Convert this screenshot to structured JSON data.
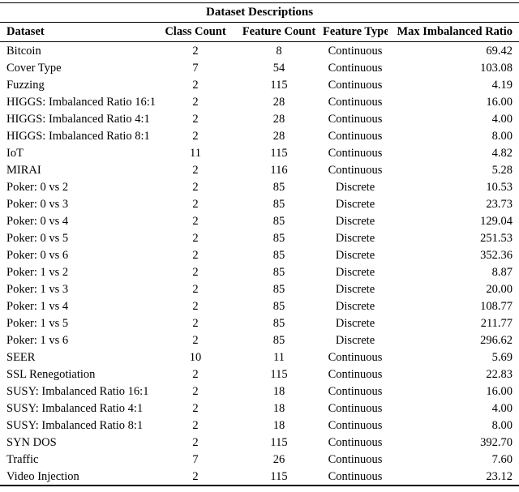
{
  "title": "Dataset Descriptions",
  "colors": {
    "text": "#000000",
    "background": "#ffffff",
    "rule": "#000000"
  },
  "table": {
    "columns": [
      {
        "label": "Dataset",
        "align": "left"
      },
      {
        "label": "Class Count",
        "align": "center"
      },
      {
        "label": "Feature Count",
        "align": "center"
      },
      {
        "label": "Feature Type",
        "align": "center"
      },
      {
        "label": "Max Imbalanced Ratio",
        "align": "right"
      }
    ],
    "rows": [
      [
        "Bitcoin",
        "2",
        "8",
        "Continuous",
        "69.42"
      ],
      [
        "Cover Type",
        "7",
        "54",
        "Continuous",
        "103.08"
      ],
      [
        "Fuzzing",
        "2",
        "115",
        "Continuous",
        "4.19"
      ],
      [
        "HIGGS: Imbalanced Ratio 16:1",
        "2",
        "28",
        "Continuous",
        "16.00"
      ],
      [
        "HIGGS: Imbalanced Ratio 4:1",
        "2",
        "28",
        "Continuous",
        "4.00"
      ],
      [
        "HIGGS: Imbalanced Ratio 8:1",
        "2",
        "28",
        "Continuous",
        "8.00"
      ],
      [
        "IoT",
        "11",
        "115",
        "Continuous",
        "4.82"
      ],
      [
        "MIRAI",
        "2",
        "116",
        "Continuous",
        "5.28"
      ],
      [
        "Poker: 0 vs 2",
        "2",
        "85",
        "Discrete",
        "10.53"
      ],
      [
        "Poker: 0 vs 3",
        "2",
        "85",
        "Discrete",
        "23.73"
      ],
      [
        "Poker: 0 vs 4",
        "2",
        "85",
        "Discrete",
        "129.04"
      ],
      [
        "Poker: 0 vs 5",
        "2",
        "85",
        "Discrete",
        "251.53"
      ],
      [
        "Poker: 0 vs 6",
        "2",
        "85",
        "Discrete",
        "352.36"
      ],
      [
        "Poker: 1 vs 2",
        "2",
        "85",
        "Discrete",
        "8.87"
      ],
      [
        "Poker: 1 vs 3",
        "2",
        "85",
        "Discrete",
        "20.00"
      ],
      [
        "Poker: 1 vs 4",
        "2",
        "85",
        "Discrete",
        "108.77"
      ],
      [
        "Poker: 1 vs 5",
        "2",
        "85",
        "Discrete",
        "211.77"
      ],
      [
        "Poker: 1 vs 6",
        "2",
        "85",
        "Discrete",
        "296.62"
      ],
      [
        "SEER",
        "10",
        "11",
        "Continuous",
        "5.69"
      ],
      [
        "SSL Renegotiation",
        "2",
        "115",
        "Continuous",
        "22.83"
      ],
      [
        "SUSY: Imbalanced Ratio 16:1",
        "2",
        "18",
        "Continuous",
        "16.00"
      ],
      [
        "SUSY: Imbalanced Ratio 4:1",
        "2",
        "18",
        "Continuous",
        "4.00"
      ],
      [
        "SUSY: Imbalanced Ratio 8:1",
        "2",
        "18",
        "Continuous",
        "8.00"
      ],
      [
        "SYN DOS",
        "2",
        "115",
        "Continuous",
        "392.70"
      ],
      [
        "Traffic",
        "7",
        "26",
        "Continuous",
        "7.60"
      ],
      [
        "Video Injection",
        "2",
        "115",
        "Continuous",
        "23.12"
      ]
    ]
  }
}
